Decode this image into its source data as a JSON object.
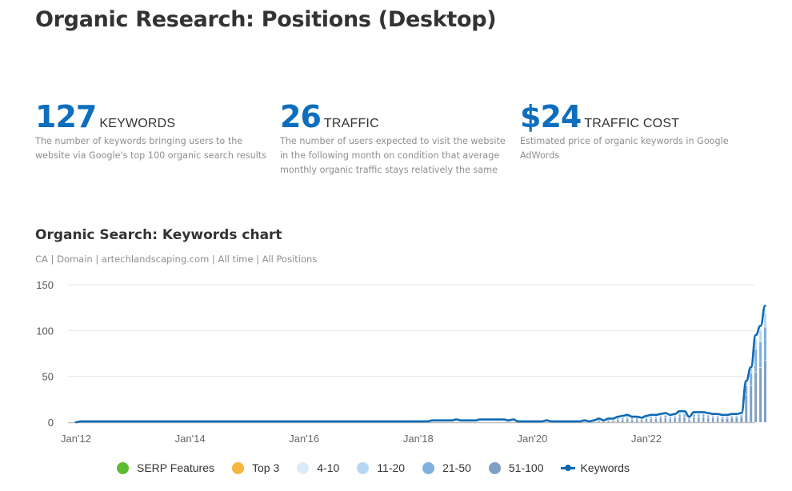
{
  "page": {
    "title": "Organic Research: Positions (Desktop)"
  },
  "metrics": [
    {
      "value": "127",
      "label": "KEYWORDS",
      "description": "The number of keywords bringing users to the website via Google's top 100 organic search results"
    },
    {
      "value": "26",
      "label": "TRAFFIC",
      "description": "The number of users expected to visit the website in the following month on condition that average monthly organic traffic stays relatively the same"
    },
    {
      "value": "$24",
      "label": "TRAFFIC COST",
      "description": "Estimated price of organic keywords in Google AdWords"
    }
  ],
  "colors": {
    "accent": "#0d6ebd",
    "keywords_line": "#0f6ab5",
    "serp_features": "#5dbb2f",
    "top3": "#f6b53b",
    "pos_4_10": "#dcebf8",
    "pos_11_20": "#b6d7f2",
    "pos_21_50": "#7fb0df",
    "pos_51_100": "#7f9fc7",
    "grid": "#e6e6e6"
  },
  "chart_data": {
    "type": "line",
    "title": "Organic Search: Keywords chart",
    "subtitle": "CA | Domain | artechlandscaping.com | All time | All Positions",
    "xlabel": "",
    "ylabel": "",
    "ylim": [
      0,
      150
    ],
    "yticks": [
      "0",
      "50",
      "100",
      "150"
    ],
    "ytick_values": [
      0,
      50,
      100,
      150
    ],
    "xticks": [
      "Jan'12",
      "Jan'14",
      "Jan'16",
      "Jan'18",
      "Jan'20",
      "Jan'22"
    ],
    "xtick_months": [
      0,
      24,
      48,
      72,
      96,
      120
    ],
    "xlim_months": [
      0,
      141
    ],
    "grid": true,
    "legend_position": "bottom",
    "legend": [
      {
        "name": "SERP Features",
        "kind": "dot",
        "color_key": "serp_features"
      },
      {
        "name": "Top 3",
        "kind": "dot",
        "color_key": "top3"
      },
      {
        "name": "4-10",
        "kind": "dot",
        "color_key": "pos_4_10"
      },
      {
        "name": "11-20",
        "kind": "dot",
        "color_key": "pos_11_20"
      },
      {
        "name": "21-50",
        "kind": "dot",
        "color_key": "pos_21_50"
      },
      {
        "name": "51-100",
        "kind": "dot",
        "color_key": "pos_51_100"
      },
      {
        "name": "Keywords",
        "kind": "line",
        "color_key": "keywords_line"
      }
    ],
    "series": [
      {
        "name": "Keywords",
        "x_start": "Jan'12",
        "x_unit": "month",
        "values": [
          0,
          1,
          1,
          1,
          1,
          1,
          1,
          1,
          1,
          1,
          1,
          1,
          1,
          1,
          1,
          1,
          1,
          1,
          1,
          1,
          1,
          1,
          1,
          1,
          1,
          1,
          1,
          1,
          1,
          1,
          1,
          1,
          1,
          1,
          1,
          1,
          1,
          1,
          1,
          1,
          1,
          1,
          1,
          1,
          1,
          1,
          1,
          1,
          1,
          1,
          1,
          1,
          1,
          1,
          1,
          1,
          1,
          1,
          1,
          1,
          1,
          1,
          1,
          1,
          1,
          1,
          1,
          1,
          1,
          1,
          1,
          1,
          1,
          1,
          1,
          2,
          2,
          2,
          2,
          2,
          3,
          2,
          2,
          2,
          2,
          3,
          3,
          3,
          3,
          3,
          3,
          2,
          3,
          1,
          1,
          1,
          1,
          1,
          1,
          2,
          1,
          1,
          1,
          1,
          1,
          1,
          1,
          2,
          1,
          2,
          4,
          2,
          4,
          4,
          6,
          7,
          8,
          6,
          6,
          5,
          7,
          8,
          8,
          9,
          10,
          8,
          9,
          12,
          12,
          6,
          11,
          11,
          11,
          10,
          9,
          9,
          8,
          8,
          9,
          9,
          10,
          45,
          60,
          95,
          105,
          127
        ]
      },
      {
        "name": "51-100",
        "x_start": "Jan'12",
        "x_unit": "month",
        "values": [
          0,
          0,
          0,
          0,
          0,
          0,
          0,
          0,
          0,
          0,
          0,
          0,
          0,
          0,
          0,
          0,
          0,
          0,
          0,
          0,
          0,
          0,
          0,
          0,
          0,
          0,
          0,
          0,
          0,
          0,
          0,
          0,
          0,
          0,
          0,
          0,
          0,
          0,
          0,
          0,
          0,
          0,
          0,
          0,
          0,
          0,
          0,
          0,
          0,
          0,
          0,
          0,
          0,
          0,
          0,
          0,
          0,
          0,
          0,
          0,
          0,
          0,
          0,
          0,
          0,
          0,
          0,
          0,
          0,
          0,
          0,
          0,
          0,
          0,
          0,
          0,
          0,
          0,
          0,
          0,
          0,
          0,
          0,
          0,
          0,
          0,
          0,
          0,
          0,
          0,
          0,
          0,
          0,
          0,
          0,
          0,
          0,
          0,
          0,
          0,
          0,
          0,
          0,
          0,
          0,
          0,
          0,
          0,
          0,
          0,
          2,
          1,
          2,
          2,
          3,
          3,
          4,
          3,
          3,
          3,
          4,
          4,
          4,
          5,
          5,
          4,
          5,
          6,
          6,
          3,
          6,
          6,
          6,
          5,
          5,
          5,
          4,
          4,
          5,
          5,
          6,
          30,
          40,
          55,
          60,
          68
        ]
      },
      {
        "name": "21-50",
        "x_start": "Jan'12",
        "x_unit": "month",
        "values": [
          0,
          0,
          0,
          0,
          0,
          0,
          0,
          0,
          0,
          0,
          0,
          0,
          0,
          0,
          0,
          0,
          0,
          0,
          0,
          0,
          0,
          0,
          0,
          0,
          0,
          0,
          0,
          0,
          0,
          0,
          0,
          0,
          0,
          0,
          0,
          0,
          0,
          0,
          0,
          0,
          0,
          0,
          0,
          0,
          0,
          0,
          0,
          0,
          0,
          0,
          0,
          0,
          0,
          0,
          0,
          0,
          0,
          0,
          0,
          0,
          0,
          0,
          0,
          0,
          0,
          0,
          0,
          0,
          0,
          0,
          0,
          0,
          0,
          0,
          0,
          0,
          0,
          0,
          0,
          0,
          0,
          0,
          0,
          0,
          0,
          0,
          0,
          0,
          0,
          0,
          0,
          0,
          0,
          0,
          0,
          0,
          0,
          0,
          0,
          0,
          0,
          0,
          0,
          0,
          0,
          0,
          0,
          0,
          0,
          0,
          1,
          1,
          1,
          1,
          2,
          2,
          2,
          2,
          2,
          1,
          2,
          2,
          2,
          2,
          3,
          2,
          2,
          3,
          3,
          2,
          3,
          3,
          3,
          3,
          2,
          2,
          2,
          2,
          2,
          2,
          2,
          10,
          14,
          25,
          28,
          36
        ]
      },
      {
        "name": "11-20",
        "x_start": "Jan'12",
        "x_unit": "month",
        "values": [
          0,
          0,
          0,
          0,
          0,
          0,
          0,
          0,
          0,
          0,
          0,
          0,
          0,
          0,
          0,
          0,
          0,
          0,
          0,
          0,
          0,
          0,
          0,
          0,
          0,
          0,
          0,
          0,
          0,
          0,
          0,
          0,
          0,
          0,
          0,
          0,
          0,
          0,
          0,
          0,
          0,
          0,
          0,
          0,
          0,
          0,
          0,
          0,
          0,
          0,
          0,
          0,
          0,
          0,
          0,
          0,
          0,
          0,
          0,
          0,
          0,
          0,
          0,
          0,
          0,
          0,
          0,
          0,
          0,
          0,
          0,
          0,
          0,
          0,
          0,
          0,
          0,
          0,
          0,
          0,
          0,
          0,
          0,
          0,
          0,
          0,
          0,
          0,
          0,
          0,
          0,
          0,
          0,
          0,
          0,
          0,
          0,
          0,
          0,
          0,
          0,
          0,
          0,
          0,
          0,
          0,
          0,
          0,
          0,
          0,
          1,
          0,
          1,
          1,
          1,
          1,
          1,
          1,
          1,
          1,
          1,
          1,
          1,
          1,
          1,
          1,
          1,
          2,
          2,
          1,
          1,
          1,
          1,
          1,
          1,
          1,
          1,
          1,
          1,
          1,
          1,
          4,
          5,
          10,
          12,
          15
        ]
      },
      {
        "name": "4-10",
        "x_start": "Jan'12",
        "x_unit": "month",
        "values": [
          0,
          0,
          0,
          0,
          0,
          0,
          0,
          0,
          0,
          0,
          0,
          0,
          0,
          0,
          0,
          0,
          0,
          0,
          0,
          0,
          0,
          0,
          0,
          0,
          0,
          0,
          0,
          0,
          0,
          0,
          0,
          0,
          0,
          0,
          0,
          0,
          0,
          0,
          0,
          0,
          0,
          0,
          0,
          0,
          0,
          0,
          0,
          0,
          0,
          0,
          0,
          0,
          0,
          0,
          0,
          0,
          0,
          0,
          0,
          0,
          0,
          0,
          0,
          0,
          0,
          0,
          0,
          0,
          0,
          0,
          0,
          0,
          0,
          0,
          0,
          0,
          0,
          0,
          0,
          0,
          0,
          0,
          0,
          0,
          0,
          0,
          0,
          0,
          0,
          0,
          0,
          0,
          0,
          0,
          0,
          0,
          0,
          0,
          0,
          0,
          0,
          0,
          0,
          0,
          0,
          0,
          0,
          0,
          0,
          0,
          0,
          0,
          0,
          0,
          0,
          1,
          1,
          0,
          0,
          0,
          0,
          1,
          1,
          1,
          1,
          1,
          1,
          1,
          1,
          0,
          1,
          1,
          1,
          1,
          1,
          1,
          1,
          1,
          1,
          1,
          1,
          1,
          1,
          2,
          3,
          5
        ]
      }
    ]
  }
}
